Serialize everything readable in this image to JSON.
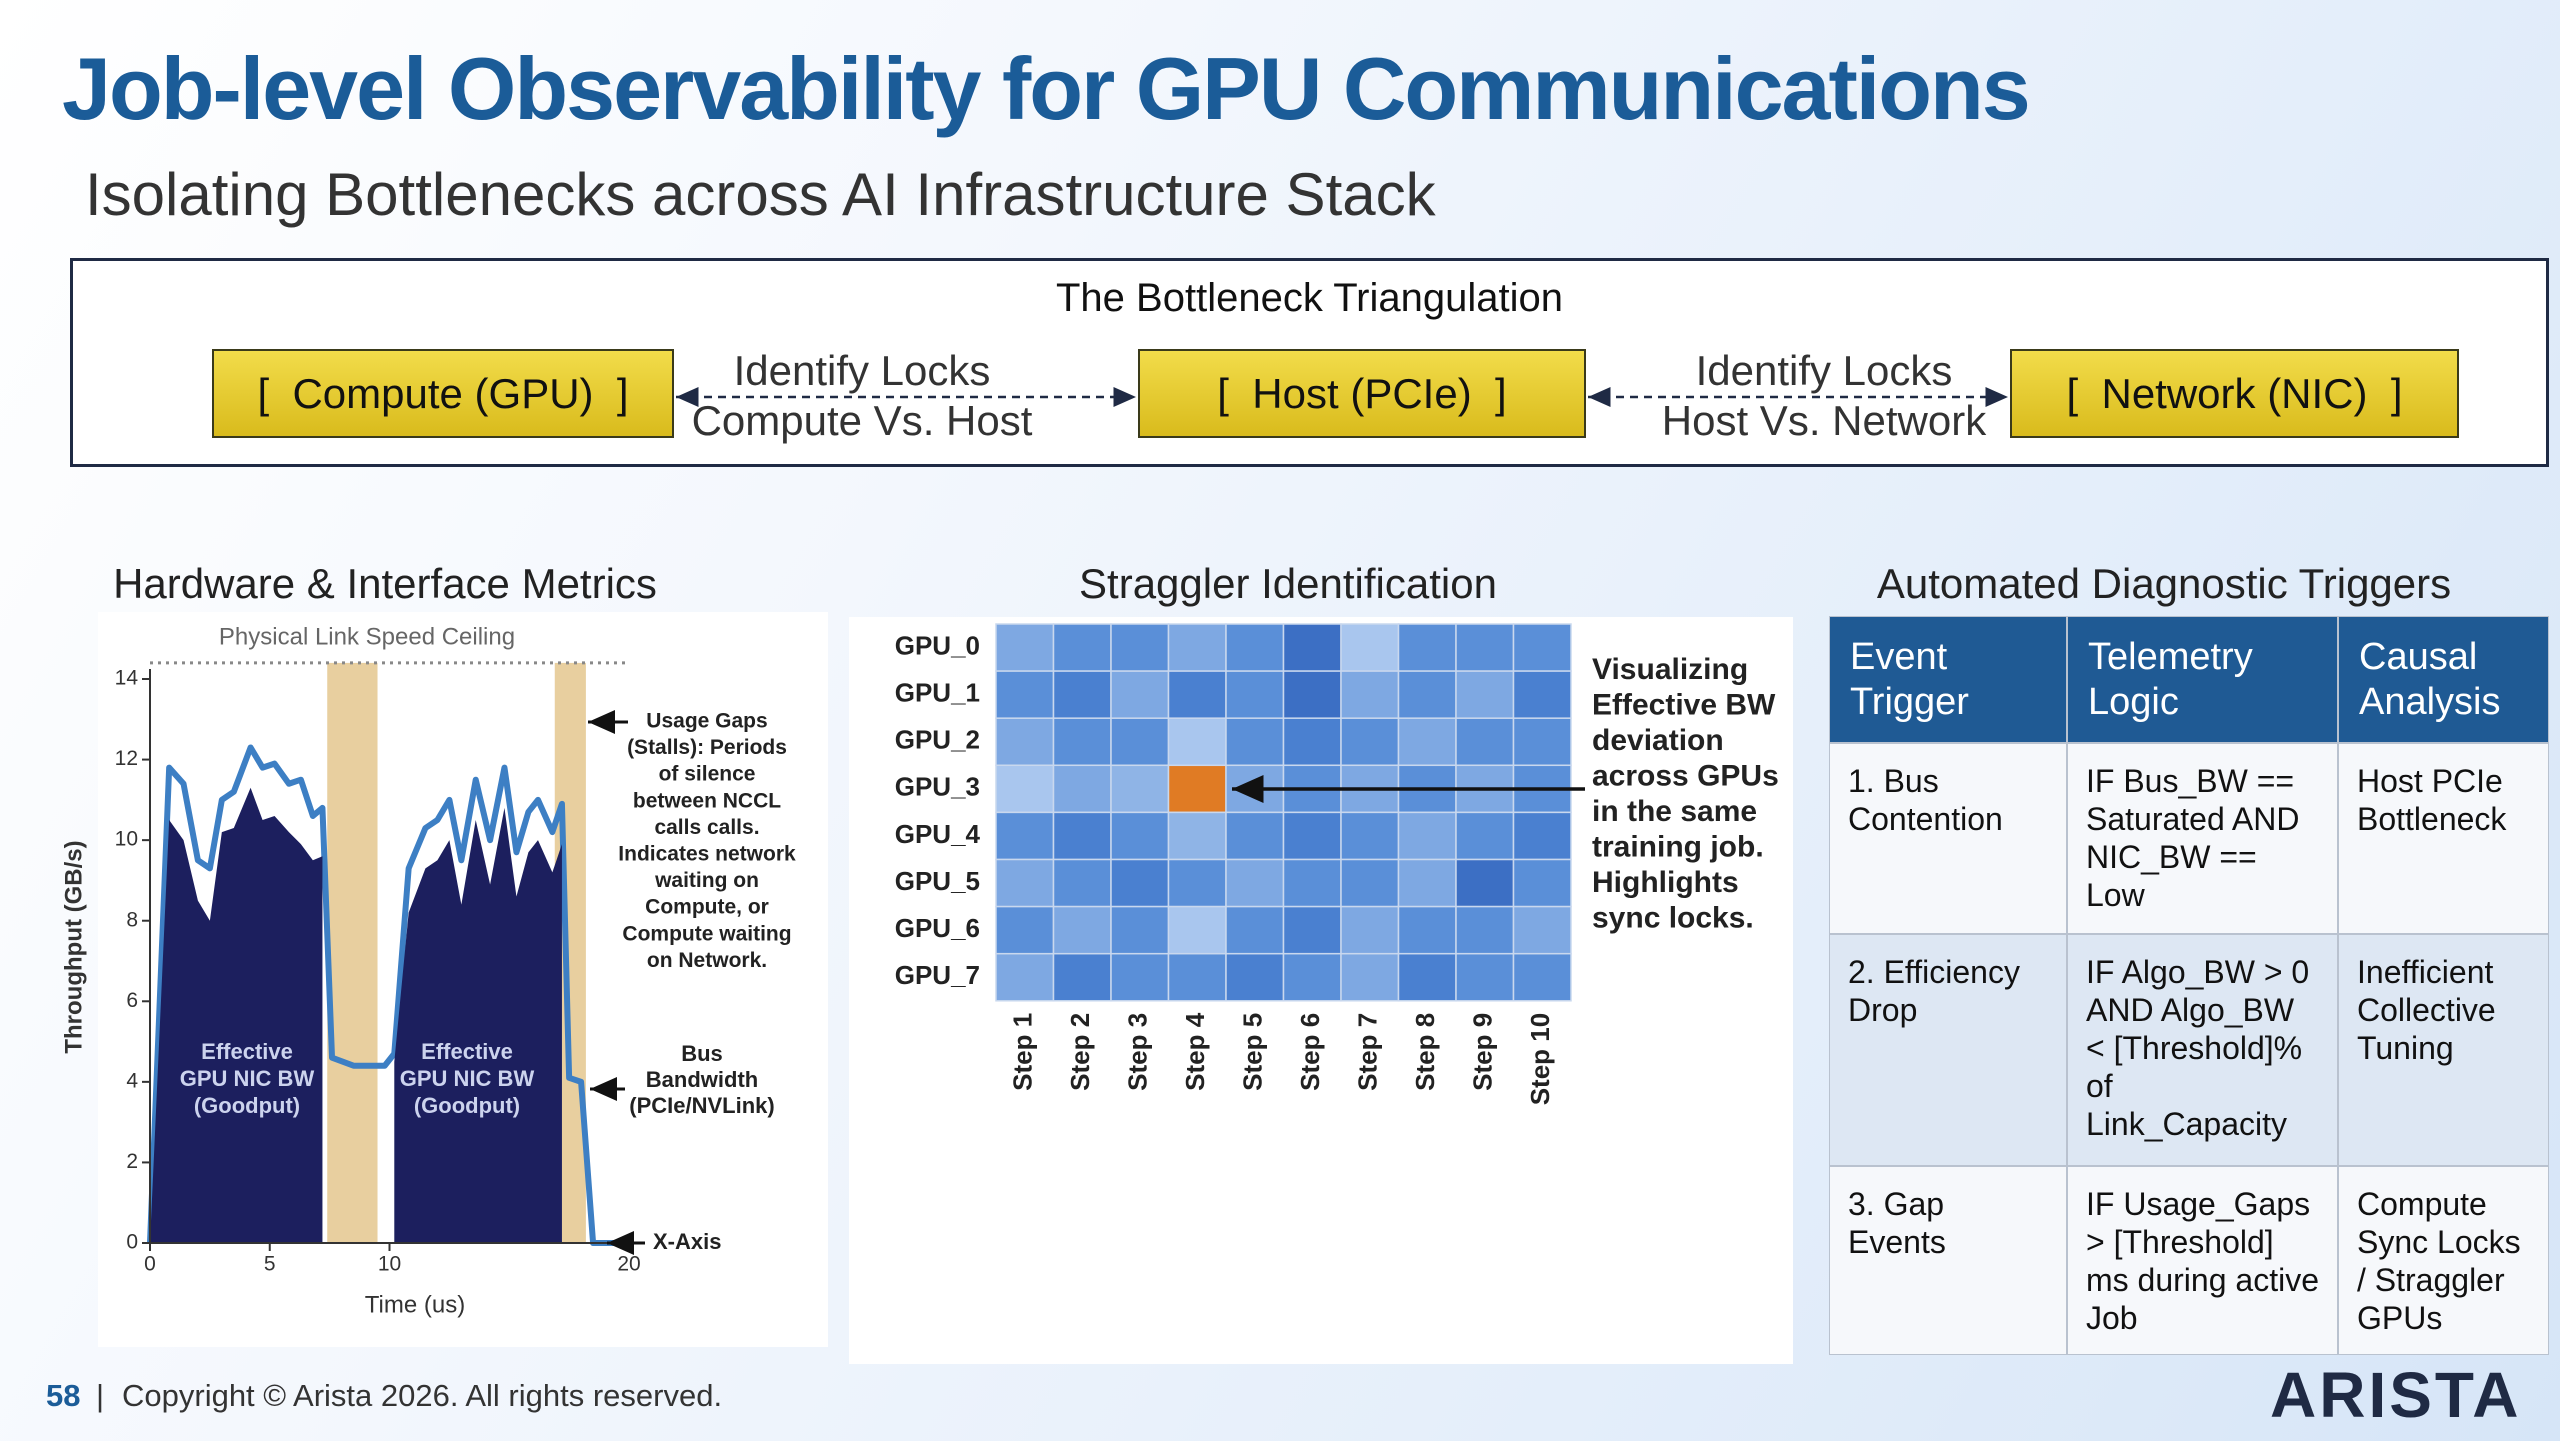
{
  "title": "Job-level Observability for GPU Communications",
  "subtitle": "Isolating Bottlenecks across AI Infrastructure Stack",
  "triangulation": {
    "title": "The Bottleneck Triangulation",
    "nodes": [
      {
        "label": "[  Compute (GPU)  ]"
      },
      {
        "label": "[  Host (PCIe)  ]"
      },
      {
        "label": "[  Network (NIC)  ]"
      }
    ],
    "edges": [
      {
        "label": [
          "Identify Locks",
          "Compute Vs. Host"
        ]
      },
      {
        "label": [
          "Identify Locks",
          "Host Vs. Network"
        ]
      }
    ]
  },
  "panels": {
    "hardware": {
      "heading": "Hardware & Interface Metrics",
      "chart_data": {
        "type": "area",
        "xlabel": "Time (us)",
        "ylabel": "Throughput (GB/s)",
        "x": [
          0,
          0.8,
          1.4,
          2.0,
          2.5,
          3.0,
          3.5,
          4.2,
          4.7,
          5.2,
          5.8,
          6.3,
          6.8,
          7.2,
          7.6,
          8.5,
          9.8,
          10.2,
          10.8,
          11.5,
          12.0,
          12.5,
          13.0,
          13.6,
          14.2,
          14.8,
          15.3,
          15.8,
          16.2,
          16.8,
          17.2,
          17.5,
          18.0,
          18.5,
          20
        ],
        "series": [
          {
            "color": "#3d7fc4",
            "values": [
              0,
              11.8,
              11.4,
              9.5,
              9.3,
              11.0,
              11.2,
              12.3,
              11.8,
              11.9,
              11.4,
              11.5,
              10.6,
              10.8,
              4.6,
              4.4,
              4.4,
              4.7,
              9.3,
              10.3,
              10.5,
              11.0,
              9.5,
              11.5,
              10.0,
              11.8,
              9.7,
              10.7,
              11.0,
              10.2,
              10.9,
              4.1,
              4.0,
              0,
              0
            ]
          },
          {
            "color": "#1c1f5e",
            "values": [
              0,
              10.5,
              10.0,
              8.5,
              8.0,
              10.2,
              10.3,
              11.3,
              10.5,
              10.6,
              10.2,
              9.9,
              9.5,
              9.6,
              null,
              null,
              null,
              4.5,
              8.2,
              9.3,
              9.5,
              10.0,
              8.4,
              10.5,
              8.9,
              10.8,
              8.6,
              9.7,
              10.0,
              9.2,
              9.9,
              null,
              null,
              null,
              null
            ]
          }
        ],
        "gap_bands": [
          [
            7.4,
            9.5
          ],
          [
            16.9,
            18.2
          ]
        ],
        "gap_color": "#e8cf9f",
        "ceiling": {
          "value": 14.4,
          "label": "Physical Link Speed Ceiling"
        },
        "xlim": [
          0,
          20
        ],
        "xticks": [
          0,
          5,
          10,
          20
        ],
        "ylim": [
          0,
          14
        ],
        "yticks": [
          0,
          2,
          4,
          6,
          8,
          10,
          12,
          14
        ],
        "annotations": {
          "gaps": [
            "Usage Gaps",
            "(Stalls): Periods",
            "of silence",
            "between NCCL",
            "calls calls.",
            "Indicates network",
            "waiting on",
            "Compute, or",
            "Compute waiting",
            "on Network."
          ],
          "goodput": [
            [
              "Effective",
              "GPU NIC BW",
              "(Goodput)"
            ],
            [
              "Effective",
              "GPU NIC BW",
              "(Goodput)"
            ]
          ],
          "bus": [
            "Bus",
            "Bandwidth",
            "(PCIe/NVLink)"
          ],
          "x_axis": "X-Axis"
        }
      }
    },
    "straggler": {
      "heading": "Straggler Identification",
      "rows": [
        "GPU_0",
        "GPU_1",
        "GPU_2",
        "GPU_3",
        "GPU_4",
        "GPU_5",
        "GPU_6",
        "GPU_7"
      ],
      "columns": [
        "Step 1",
        "Step 2",
        "Step 3",
        "Step 4",
        "Step 5",
        "Step 6",
        "Step 7",
        "Step 8",
        "Step 9",
        "Step 10"
      ],
      "cell_colors": [
        [
          "#7ea8e2",
          "#5a8fd8",
          "#5a8fd8",
          "#7ea8e2",
          "#5a8fd8",
          "#3c6fc4",
          "#a9c6ee",
          "#5a8fd8",
          "#5a8fd8",
          "#5a8fd8"
        ],
        [
          "#5a8fd8",
          "#4a80d0",
          "#7ea8e2",
          "#4a80d0",
          "#5a8fd8",
          "#3c6fc4",
          "#7ea8e2",
          "#5a8fd8",
          "#7ea8e2",
          "#4a80d0"
        ],
        [
          "#7ea8e2",
          "#5a8fd8",
          "#5a8fd8",
          "#a9c6ee",
          "#5a8fd8",
          "#4a80d0",
          "#5a8fd8",
          "#7ea8e2",
          "#5a8fd8",
          "#5a8fd8"
        ],
        [
          "#a9c6ee",
          "#7ea8e2",
          "#8fb4e6",
          "#e07b24",
          "#7ea8e2",
          "#5a8fd8",
          "#7ea8e2",
          "#5a8fd8",
          "#7ea8e2",
          "#5a8fd8"
        ],
        [
          "#5a8fd8",
          "#4a80d0",
          "#5a8fd8",
          "#8fb4e6",
          "#5a8fd8",
          "#4a80d0",
          "#5a8fd8",
          "#7ea8e2",
          "#5a8fd8",
          "#4a80d0"
        ],
        [
          "#7ea8e2",
          "#5a8fd8",
          "#4a80d0",
          "#5a8fd8",
          "#7ea8e2",
          "#5a8fd8",
          "#5a8fd8",
          "#7ea8e2",
          "#3c6fc4",
          "#5a8fd8"
        ],
        [
          "#5a8fd8",
          "#7ea8e2",
          "#5a8fd8",
          "#a9c6ee",
          "#5a8fd8",
          "#4a80d0",
          "#7ea8e2",
          "#5a8fd8",
          "#5a8fd8",
          "#7ea8e2"
        ],
        [
          "#7ea8e2",
          "#4a80d0",
          "#5a8fd8",
          "#5a8fd8",
          "#4a80d0",
          "#5a8fd8",
          "#7ea8e2",
          "#4a80d0",
          "#5a8fd8",
          "#5a8fd8"
        ]
      ],
      "annotation": [
        "Visualizing",
        "Effective BW",
        "deviation",
        "across GPUs",
        "in the same",
        "training job.",
        "Highlights",
        "sync locks."
      ]
    },
    "diagnostics": {
      "heading": "Automated Diagnostic Triggers",
      "table": {
        "header": [
          "Event Trigger",
          "Telemetry Logic",
          "Causal Analysis"
        ],
        "rows": [
          [
            "1. Bus Contention",
            "IF Bus_BW == Saturated AND NIC_BW == Low",
            "Host PCIe Bottleneck"
          ],
          [
            "2. Efficiency Drop",
            "IF Algo_BW > 0 AND Algo_BW < [Threshold]% of Link_Capacity",
            "Inefficient Collective Tuning"
          ],
          [
            "3. Gap Events",
            "IF Usage_Gaps > [Threshold] ms during active Job",
            "Compute Sync Locks / Straggler GPUs"
          ]
        ]
      }
    }
  },
  "footer": {
    "page": "58",
    "separator": "|",
    "copyright": "Copyright © Arista 2026. All rights reserved.",
    "logo": "ARISTA"
  }
}
